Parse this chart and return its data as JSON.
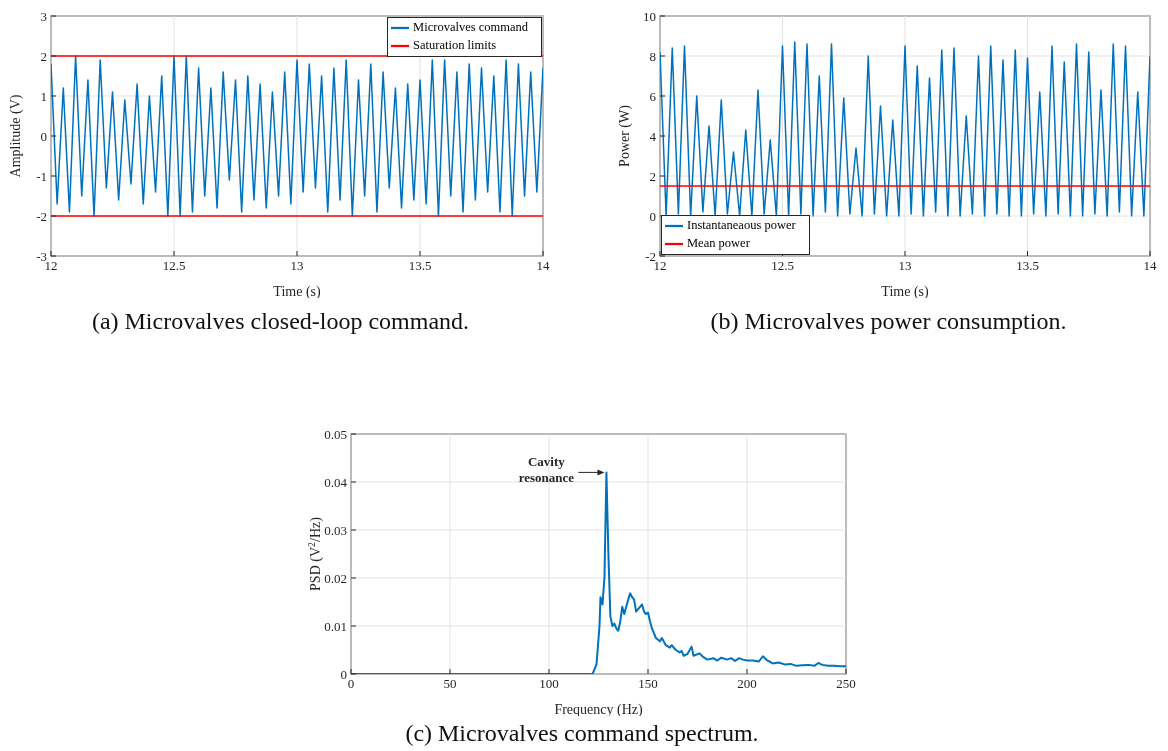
{
  "chart_data": [
    {
      "type": "line",
      "title": "(a) Microvalves closed-loop command.",
      "xlabel": "Time (s)",
      "ylabel": "Amplitude (V)",
      "xlim": [
        12,
        14
      ],
      "xticks": [
        12,
        12.5,
        13,
        13.5,
        14
      ],
      "ylim": [
        -3,
        3
      ],
      "yticks": [
        -3,
        -2,
        -1,
        0,
        1,
        2,
        3
      ],
      "grid": true,
      "legend": "top right",
      "line_style": "solid",
      "series": [
        {
          "name": "Microvalves command",
          "color": "#0072bd",
          "x": [
            12,
            12.025,
            12.05,
            12.075,
            12.1,
            12.125,
            12.15,
            12.175,
            12.2,
            12.225,
            12.25,
            12.275,
            12.3,
            12.325,
            12.35,
            12.375,
            12.4,
            12.425,
            12.45,
            12.475,
            12.5,
            12.525,
            12.55,
            12.575,
            12.6,
            12.625,
            12.65,
            12.675,
            12.7,
            12.725,
            12.75,
            12.775,
            12.8,
            12.825,
            12.85,
            12.875,
            12.9,
            12.925,
            12.95,
            12.975,
            13,
            13.025,
            13.05,
            13.075,
            13.1,
            13.125,
            13.15,
            13.175,
            13.2,
            13.225,
            13.25,
            13.275,
            13.3,
            13.325,
            13.35,
            13.375,
            13.4,
            13.425,
            13.45,
            13.475,
            13.5,
            13.525,
            13.55,
            13.575,
            13.6,
            13.625,
            13.65,
            13.675,
            13.7,
            13.725,
            13.75,
            13.775,
            13.8,
            13.825,
            13.85,
            13.875,
            13.9,
            13.925,
            13.95,
            13.975,
            14
          ],
          "values": [
            1.8,
            -1.7,
            1.2,
            -1.9,
            2,
            -1.5,
            1.4,
            -2,
            1.9,
            -1.3,
            1.1,
            -1.6,
            0.9,
            -1.2,
            1.3,
            -1.7,
            1,
            -1.4,
            1.5,
            -2,
            2,
            -2,
            2,
            -1.9,
            1.7,
            -1.5,
            1.2,
            -1.8,
            1.6,
            -1.1,
            1.4,
            -1.9,
            1.5,
            -1.6,
            1.3,
            -1.8,
            1.1,
            -1.5,
            1.6,
            -1.7,
            1.9,
            -1.4,
            1.8,
            -1.3,
            1.5,
            -1.9,
            1.7,
            -1.6,
            1.9,
            -2,
            1.4,
            -1.5,
            1.8,
            -1.9,
            1.6,
            -1.3,
            1.2,
            -1.8,
            1.3,
            -1.6,
            1.4,
            -1.7,
            1.9,
            -2,
            1.9,
            -1.5,
            1.6,
            -1.9,
            1.8,
            -1.6,
            1.7,
            -1.4,
            1.5,
            -1.9,
            1.9,
            -2,
            1.8,
            -1.5,
            1.6,
            -1.4,
            1.7
          ]
        },
        {
          "name": "Saturation limits",
          "color": "#ff0000",
          "x": [
            12,
            14
          ],
          "values": [
            2,
            2
          ]
        },
        {
          "color": "#ff0000",
          "x": [
            12,
            14
          ],
          "values": [
            -2,
            -2
          ]
        }
      ]
    },
    {
      "type": "line",
      "title": "(b) Microvalves power consumption.",
      "xlabel": "Time (s)",
      "ylabel": "Power (W)",
      "xlim": [
        12,
        14
      ],
      "xticks": [
        12,
        12.5,
        13,
        13.5,
        14
      ],
      "ylim": [
        -2,
        10
      ],
      "yticks": [
        -2,
        0,
        2,
        4,
        6,
        8,
        10
      ],
      "grid": true,
      "legend": "bottom left",
      "line_style": "solid",
      "series": [
        {
          "name": "Instantaneaous power",
          "color": "#0072bd",
          "x": [
            12,
            12.025,
            12.05,
            12.075,
            12.1,
            12.125,
            12.15,
            12.175,
            12.2,
            12.225,
            12.25,
            12.275,
            12.3,
            12.325,
            12.35,
            12.375,
            12.4,
            12.425,
            12.45,
            12.475,
            12.5,
            12.525,
            12.55,
            12.575,
            12.6,
            12.625,
            12.65,
            12.675,
            12.7,
            12.725,
            12.75,
            12.775,
            12.8,
            12.825,
            12.85,
            12.875,
            12.9,
            12.925,
            12.95,
            12.975,
            13,
            13.025,
            13.05,
            13.075,
            13.1,
            13.125,
            13.15,
            13.175,
            13.2,
            13.225,
            13.25,
            13.275,
            13.3,
            13.325,
            13.35,
            13.375,
            13.4,
            13.425,
            13.45,
            13.475,
            13.5,
            13.525,
            13.55,
            13.575,
            13.6,
            13.625,
            13.65,
            13.675,
            13.7,
            13.725,
            13.75,
            13.775,
            13.8,
            13.825,
            13.85,
            13.875,
            13.9,
            13.925,
            13.95,
            13.975,
            14
          ],
          "values": [
            8.2,
            0,
            8.4,
            0.1,
            8.5,
            0,
            6,
            0.2,
            4.5,
            0,
            5.8,
            0.1,
            3.2,
            0,
            4.3,
            0,
            6.3,
            0.1,
            3.8,
            0,
            8.5,
            0,
            8.7,
            0.1,
            8.6,
            0,
            7,
            0.2,
            8.6,
            0,
            5.9,
            0.1,
            3.4,
            0,
            8,
            0.1,
            5.5,
            0,
            4.8,
            0,
            8.5,
            0.1,
            7.5,
            0,
            6.9,
            0.2,
            8.3,
            0,
            8.4,
            0,
            5,
            0.1,
            8,
            0,
            8.5,
            0.1,
            7.8,
            0,
            8.3,
            0,
            7.9,
            0.1,
            6.2,
            0,
            8.5,
            0.1,
            7.7,
            0,
            8.6,
            0,
            8.2,
            0.1,
            6.3,
            0,
            8.6,
            0.2,
            8.5,
            0,
            6.2,
            0,
            8
          ]
        },
        {
          "name": "Mean power",
          "color": "#ff0000",
          "x": [
            12,
            14
          ],
          "values": [
            1.5,
            1.5
          ]
        }
      ]
    },
    {
      "type": "line",
      "title": "(c) Microvalves command spectrum.",
      "xlabel": "Frequency (Hz)",
      "ylabel": "PSD (V$^{2}$/Hz)",
      "xlim": [
        0,
        250
      ],
      "xticks": [
        0,
        50,
        100,
        150,
        200,
        250
      ],
      "ylim": [
        0,
        0.05
      ],
      "yticks": [
        0,
        0.01,
        0.02,
        0.03,
        0.04,
        0.05
      ],
      "grid": true,
      "line_style": "solid",
      "annotations": [
        {
          "text": "Cavity resonance",
          "x": 129,
          "y": 0.042
        }
      ],
      "series": [
        {
          "color": "#0072bd",
          "x": [
            0,
            50,
            100,
            122,
            124,
            125.5,
            126,
            127,
            128,
            129,
            130,
            131,
            132,
            133,
            134,
            135,
            136,
            137,
            138,
            139,
            140,
            141,
            142,
            143,
            144,
            145,
            146,
            147,
            148,
            149,
            150,
            151,
            152,
            154,
            156,
            157,
            159,
            161,
            162,
            164,
            166,
            167,
            168,
            170,
            172,
            173,
            176,
            178,
            180,
            183,
            185,
            187,
            190,
            192,
            194,
            196,
            198,
            200,
            203,
            206,
            208,
            210,
            213,
            216,
            219,
            222,
            225,
            228,
            231,
            234,
            236,
            238,
            241,
            244,
            247,
            250
          ],
          "values": [
            0,
            0,
            0,
            0,
            0.002,
            0.01,
            0.016,
            0.0145,
            0.02,
            0.042,
            0.025,
            0.012,
            0.01,
            0.0105,
            0.0095,
            0.009,
            0.011,
            0.014,
            0.0125,
            0.014,
            0.0155,
            0.0168,
            0.016,
            0.0155,
            0.013,
            0.0135,
            0.014,
            0.0145,
            0.013,
            0.0125,
            0.0128,
            0.011,
            0.0095,
            0.0075,
            0.0068,
            0.0075,
            0.006,
            0.0055,
            0.006,
            0.005,
            0.0045,
            0.0048,
            0.0038,
            0.0042,
            0.0057,
            0.0038,
            0.0043,
            0.0035,
            0.003,
            0.0033,
            0.0028,
            0.0034,
            0.003,
            0.0033,
            0.0027,
            0.0033,
            0.003,
            0.0028,
            0.0028,
            0.0026,
            0.0037,
            0.0029,
            0.0022,
            0.0024,
            0.002,
            0.0021,
            0.0017,
            0.0018,
            0.0019,
            0.0017,
            0.0023,
            0.0019,
            0.0017,
            0.0017,
            0.0016,
            0.0016
          ]
        }
      ]
    }
  ]
}
